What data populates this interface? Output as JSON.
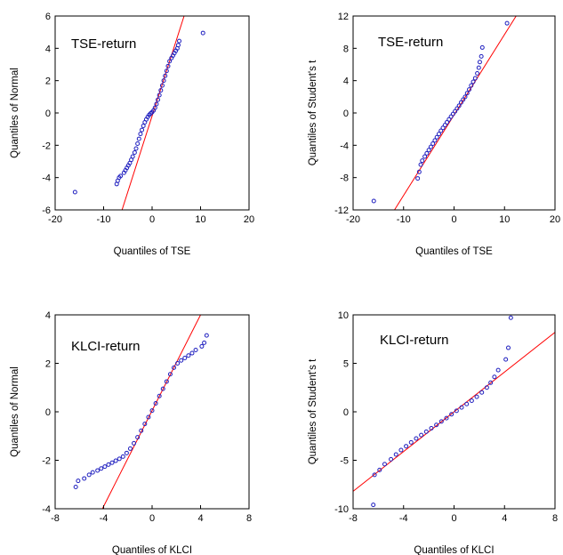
{
  "colors": {
    "points": "#1f1fbf",
    "fit_line": "#ff0000",
    "frame": "#000000"
  },
  "chart_data": [
    {
      "type": "scatter",
      "annotation": "TSE-return",
      "xlabel": "Quantiles of TSE",
      "ylabel": "Quantiles of Normal",
      "xlim": [
        -20,
        20
      ],
      "ylim": [
        -6,
        6
      ],
      "xticks": [
        -20,
        -10,
        0,
        10,
        20
      ],
      "yticks": [
        -6,
        -4,
        -2,
        0,
        2,
        4,
        6
      ],
      "reference_line": {
        "x": [
          -6.2,
          6.6
        ],
        "y": [
          -6,
          6
        ]
      },
      "points": {
        "x": [
          -15.9,
          -7.3,
          -7.1,
          -6.8,
          -6.5,
          -5.8,
          -5.5,
          -5.2,
          -4.9,
          -4.6,
          -4.3,
          -4.0,
          -3.6,
          -3.3,
          -3.0,
          -2.7,
          -2.4,
          -2.1,
          -1.8,
          -1.5,
          -1.2,
          -0.9,
          -0.6,
          -0.3,
          0.0,
          0.3,
          0.6,
          0.9,
          1.2,
          1.5,
          1.8,
          2.1,
          2.4,
          2.7,
          3.0,
          3.3,
          3.6,
          4.0,
          4.3,
          4.6,
          4.9,
          5.2,
          5.4,
          5.6,
          10.5
        ],
        "y": [
          -4.9,
          -4.4,
          -4.2,
          -4.0,
          -3.9,
          -3.7,
          -3.55,
          -3.4,
          -3.25,
          -3.1,
          -2.9,
          -2.7,
          -2.45,
          -2.2,
          -1.9,
          -1.6,
          -1.3,
          -1.05,
          -0.8,
          -0.58,
          -0.4,
          -0.25,
          -0.12,
          -0.03,
          0.05,
          0.15,
          0.32,
          0.55,
          0.82,
          1.1,
          1.4,
          1.7,
          2.0,
          2.3,
          2.6,
          2.9,
          3.2,
          3.4,
          3.55,
          3.7,
          3.85,
          4.0,
          4.2,
          4.45,
          4.95
        ]
      }
    },
    {
      "type": "scatter",
      "annotation": "TSE-return",
      "xlabel": "Quantiles of TSE",
      "ylabel": "Quantiles of Student's t",
      "xlim": [
        -20,
        20
      ],
      "ylim": [
        -12,
        12
      ],
      "xticks": [
        -20,
        -10,
        0,
        10,
        20
      ],
      "yticks": [
        -12,
        -8,
        -4,
        0,
        4,
        8,
        12
      ],
      "reference_line": {
        "x": [
          -11.8,
          12.3
        ],
        "y": [
          -12,
          12
        ]
      },
      "points": {
        "x": [
          -15.9,
          -7.2,
          -6.9,
          -6.6,
          -6.3,
          -5.8,
          -5.4,
          -5.0,
          -4.6,
          -4.2,
          -3.8,
          -3.4,
          -3.0,
          -2.6,
          -2.2,
          -1.8,
          -1.4,
          -1.0,
          -0.6,
          -0.2,
          0.2,
          0.6,
          1.0,
          1.4,
          1.8,
          2.2,
          2.6,
          3.0,
          3.4,
          3.8,
          4.2,
          4.6,
          4.9,
          5.1,
          5.4,
          5.6,
          10.5
        ],
        "y": [
          -10.9,
          -8.1,
          -7.3,
          -6.4,
          -5.9,
          -5.4,
          -5.0,
          -4.6,
          -4.2,
          -3.8,
          -3.4,
          -3.0,
          -2.6,
          -2.2,
          -1.85,
          -1.5,
          -1.15,
          -0.8,
          -0.45,
          -0.12,
          0.2,
          0.55,
          0.9,
          1.3,
          1.65,
          2.0,
          2.45,
          2.9,
          3.4,
          3.85,
          4.3,
          4.9,
          5.6,
          6.3,
          7.0,
          8.1,
          11.1
        ]
      }
    },
    {
      "type": "scatter",
      "annotation": "KLCI-return",
      "xlabel": "Quantiles of KLCI",
      "ylabel": "Quantiles of Normal",
      "xlim": [
        -8,
        8
      ],
      "ylim": [
        -4,
        4
      ],
      "xticks": [
        -8,
        -4,
        0,
        4,
        8
      ],
      "yticks": [
        -4,
        -2,
        0,
        2,
        4
      ],
      "reference_line": {
        "x": [
          -4.1,
          4.0
        ],
        "y": [
          -4,
          4
        ]
      },
      "points": {
        "x": [
          -6.3,
          -6.1,
          -5.6,
          -5.2,
          -4.9,
          -4.5,
          -4.2,
          -3.9,
          -3.6,
          -3.3,
          -3.0,
          -2.7,
          -2.4,
          -2.1,
          -1.8,
          -1.5,
          -1.2,
          -0.9,
          -0.6,
          -0.3,
          0.0,
          0.3,
          0.6,
          0.9,
          1.2,
          1.5,
          1.8,
          2.1,
          2.4,
          2.7,
          3.0,
          3.3,
          3.6,
          4.1,
          4.3,
          4.5
        ],
        "y": [
          -3.1,
          -2.85,
          -2.75,
          -2.6,
          -2.5,
          -2.42,
          -2.34,
          -2.26,
          -2.18,
          -2.1,
          -2.02,
          -1.94,
          -1.85,
          -1.7,
          -1.52,
          -1.3,
          -1.05,
          -0.78,
          -0.5,
          -0.22,
          0.05,
          0.35,
          0.65,
          0.95,
          1.25,
          1.55,
          1.82,
          2.0,
          2.12,
          2.22,
          2.32,
          2.42,
          2.55,
          2.7,
          2.85,
          3.15
        ]
      }
    },
    {
      "type": "scatter",
      "annotation": "KLCI-return",
      "xlabel": "Quantiles of KLCI",
      "ylabel": "Quantiles of Student's t",
      "xlim": [
        -8,
        8
      ],
      "ylim": [
        -10,
        10
      ],
      "xticks": [
        -8,
        -4,
        0,
        4,
        8
      ],
      "yticks": [
        -10,
        -5,
        0,
        5,
        10
      ],
      "reference_line": {
        "x": [
          -8,
          8
        ],
        "y": [
          -8.2,
          8.2
        ]
      },
      "points": {
        "x": [
          -6.3,
          -5.9,
          -5.5,
          -5.0,
          -4.6,
          -4.2,
          -3.8,
          -3.4,
          -3.0,
          -2.6,
          -2.2,
          -1.8,
          -1.4,
          -1.0,
          -0.6,
          -0.2,
          0.2,
          0.6,
          1.0,
          1.4,
          1.8,
          2.2,
          2.6,
          2.9,
          3.2,
          3.5,
          4.1,
          4.3,
          4.5,
          -6.4
        ],
        "y": [
          -6.5,
          -6.0,
          -5.4,
          -4.9,
          -4.4,
          -3.95,
          -3.55,
          -3.15,
          -2.75,
          -2.4,
          -2.05,
          -1.7,
          -1.35,
          -1.0,
          -0.65,
          -0.25,
          0.1,
          0.45,
          0.8,
          1.15,
          1.55,
          2.0,
          2.5,
          3.0,
          3.6,
          4.3,
          5.4,
          6.6,
          9.7,
          -9.6
        ]
      }
    }
  ]
}
